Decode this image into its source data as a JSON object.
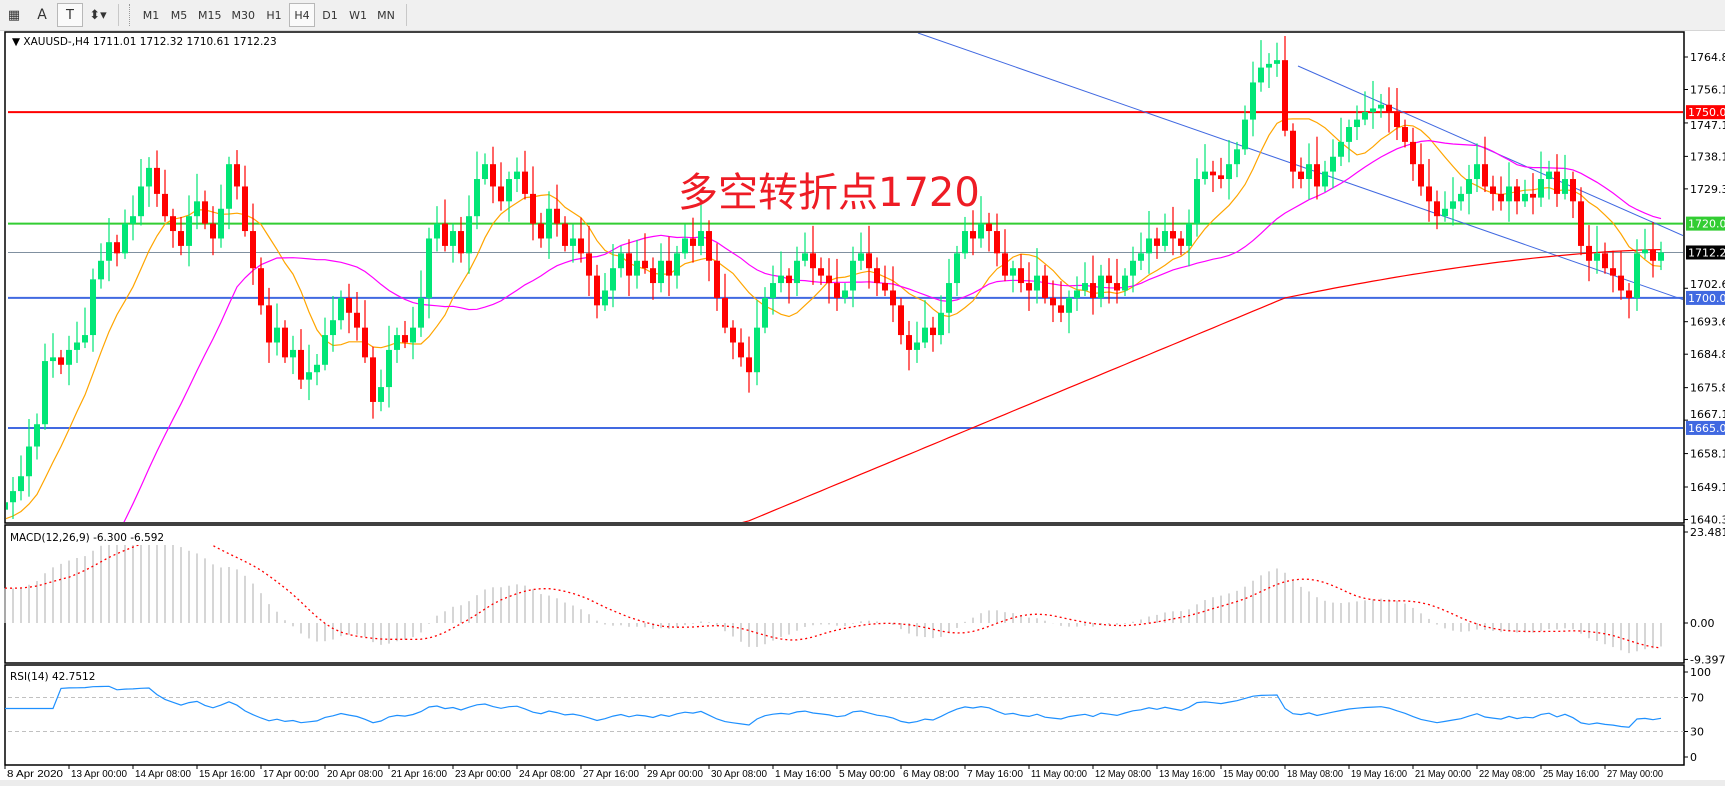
{
  "toolbar": {
    "tools": [
      {
        "name": "grid-icon",
        "label": "▦"
      },
      {
        "name": "text-tool",
        "label": "A"
      },
      {
        "name": "text-label-tool",
        "label": "T"
      },
      {
        "name": "arrows-tool",
        "label": "⬍▾"
      }
    ],
    "periods": [
      "M1",
      "M5",
      "M15",
      "M30",
      "H1",
      "H4",
      "D1",
      "W1",
      "MN"
    ],
    "active_period": "H4"
  },
  "chart": {
    "header": "XAUUSD-,H4  1711.01 1712.32 1710.61 1712.23",
    "annotation": "多空转折点1720",
    "colors": {
      "bull": "#00E676",
      "bear": "#FF0000",
      "ma_fast": "#FFA500",
      "ma_mid": "#FF00FF",
      "ma_slow": "#FF0000",
      "trend": "#4169E1",
      "rsi": "#1E90FF",
      "macd_hist": "#C0C0C0",
      "macd_signal": "#FF0000"
    }
  },
  "chart_data": {
    "type": "candlestick",
    "symbol": "XAUUSD-",
    "timeframe": "H4",
    "ohlc_last": {
      "open": 1711.01,
      "high": 1712.32,
      "low": 1710.61,
      "close": 1712.23
    },
    "closes": [
      1645,
      1648,
      1652,
      1660,
      1666,
      1683,
      1684,
      1682,
      1686,
      1688,
      1690,
      1705,
      1710,
      1715,
      1712,
      1720,
      1722,
      1730,
      1735,
      1728,
      1722,
      1718,
      1714,
      1722,
      1726,
      1720,
      1716,
      1724,
      1736,
      1730,
      1718,
      1708,
      1698,
      1688,
      1692,
      1684,
      1686,
      1678,
      1680,
      1682,
      1690,
      1694,
      1700,
      1696,
      1692,
      1684,
      1672,
      1676,
      1686,
      1690,
      1688,
      1692,
      1700,
      1716,
      1720,
      1714,
      1718,
      1712,
      1722,
      1732,
      1736,
      1730,
      1726,
      1732,
      1734,
      1728,
      1720,
      1716,
      1724,
      1720,
      1714,
      1716,
      1712,
      1706,
      1698,
      1702,
      1708,
      1712,
      1706,
      1710,
      1708,
      1704,
      1710,
      1706,
      1712,
      1716,
      1714,
      1718,
      1710,
      1700,
      1692,
      1688,
      1684,
      1680,
      1692,
      1700,
      1704,
      1706,
      1704,
      1710,
      1712,
      1708,
      1706,
      1704,
      1700,
      1702,
      1710,
      1712,
      1708,
      1704,
      1702,
      1698,
      1690,
      1686,
      1688,
      1692,
      1690,
      1696,
      1704,
      1712,
      1718,
      1716,
      1720,
      1718,
      1712,
      1706,
      1708,
      1704,
      1702,
      1706,
      1700,
      1698,
      1696,
      1700,
      1702,
      1704,
      1700,
      1706,
      1704,
      1702,
      1706,
      1710,
      1712,
      1716,
      1714,
      1718,
      1716,
      1714,
      1720,
      1732,
      1734,
      1733,
      1732,
      1736,
      1740,
      1748,
      1758,
      1762,
      1763,
      1764,
      1745,
      1734,
      1732,
      1736,
      1730,
      1734,
      1738,
      1742,
      1746,
      1748,
      1750,
      1751,
      1752,
      1750,
      1746,
      1742,
      1736,
      1730,
      1726,
      1722,
      1724,
      1726,
      1728,
      1732,
      1736,
      1730,
      1728,
      1726,
      1730,
      1726,
      1728,
      1727,
      1732,
      1734,
      1728,
      1732,
      1726,
      1714,
      1710,
      1712,
      1708,
      1706,
      1702,
      1700,
      1712,
      1713,
      1710,
      1712.23
    ],
    "price_ticks": [
      "1764.85",
      "1756.10",
      "1747.10",
      "1738.10",
      "1729.35",
      "1702.60",
      "1693.60",
      "1684.85",
      "1675.85",
      "1667.10",
      "1658.10",
      "1649.10",
      "1640.35"
    ],
    "ylim": [
      1640.35,
      1770
    ],
    "hlines": [
      {
        "price": 1750.0,
        "label": "1750.00",
        "color": "#FF0000"
      },
      {
        "price": 1720.0,
        "label": "1720.00",
        "color": "#32CD32"
      },
      {
        "price": 1700.0,
        "label": "1700.00",
        "color": "#4169E1"
      },
      {
        "price": 1665.0,
        "label": "1665.00",
        "color": "#4169E1"
      }
    ],
    "current_price": {
      "price": 1712.23,
      "label": "1712.23"
    },
    "x_labels": [
      "8 Apr 2020",
      "13 Apr 00:00",
      "14 Apr 08:00",
      "15 Apr 16:00",
      "17 Apr 00:00",
      "20 Apr 08:00",
      "21 Apr 16:00",
      "23 Apr 00:00",
      "24 Apr 08:00",
      "27 Apr 16:00",
      "29 Apr 00:00",
      "30 Apr 08:00",
      "1 May 16:00",
      "5 May 00:00",
      "6 May 08:00",
      "7 May 16:00",
      "11 May 00:00",
      "12 May 08:00",
      "13 May 16:00",
      "15 May 00:00",
      "18 May 08:00",
      "19 May 16:00",
      "21 May 00:00",
      "22 May 08:00",
      "25 May 16:00",
      "27 May 00:00"
    ],
    "macd": {
      "label": "MACD(12,26,9) -6.300 -6.592",
      "ticks": [
        "23.481",
        "0.00",
        "-9.397"
      ],
      "ylim": [
        -9.397,
        23.481
      ]
    },
    "rsi": {
      "label": "RSI(14) 42.7512",
      "ticks": [
        "100",
        "70",
        "30",
        "0"
      ],
      "levels": [
        70,
        30
      ],
      "ylim": [
        0,
        100
      ]
    }
  }
}
